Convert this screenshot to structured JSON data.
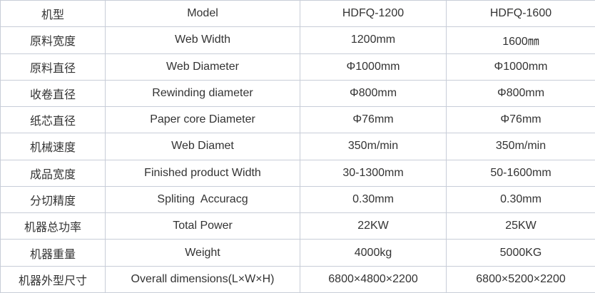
{
  "colors": {
    "border": "#c8cdd8",
    "text": "#333333",
    "background": "#ffffff"
  },
  "table": {
    "rows": [
      {
        "label_cn": "机型",
        "label_en": "Model",
        "hdfq_1200": "HDFQ-1200",
        "hdfq_1600": "HDFQ-1600"
      },
      {
        "label_cn": "原料宽度",
        "label_en": "Web Width",
        "hdfq_1200": "1200mm",
        "hdfq_1600": "1600㎜"
      },
      {
        "label_cn": "原料直径",
        "label_en": "Web Diameter",
        "hdfq_1200": "Φ1000mm",
        "hdfq_1600": "Φ1000mm"
      },
      {
        "label_cn": "收卷直径",
        "label_en": "Rewinding diameter",
        "hdfq_1200": "Φ800mm",
        "hdfq_1600": "Φ800mm"
      },
      {
        "label_cn": "纸芯直径",
        "label_en": "Paper core Diameter",
        "hdfq_1200": "Φ76mm",
        "hdfq_1600": "Φ76mm"
      },
      {
        "label_cn": "机械速度",
        "label_en": "Web Diamet",
        "hdfq_1200": "350m/min",
        "hdfq_1600": "350m/min"
      },
      {
        "label_cn": "成品宽度",
        "label_en": "Finished product Width",
        "hdfq_1200": "30-1300mm",
        "hdfq_1600": "50-1600mm"
      },
      {
        "label_cn": "分切精度",
        "label_en": "Spliting  Accuracg",
        "hdfq_1200": "0.30mm",
        "hdfq_1600": "0.30mm"
      },
      {
        "label_cn": "机器总功率",
        "label_en": "Total Power",
        "hdfq_1200": "22KW",
        "hdfq_1600": "25KW"
      },
      {
        "label_cn": "机器重量",
        "label_en": "Weight",
        "hdfq_1200": "4000kg",
        "hdfq_1600": "5000KG"
      },
      {
        "label_cn": "机器外型尺寸",
        "label_en": "Overall dimensions(L×W×H)",
        "hdfq_1200": "6800×4800×2200",
        "hdfq_1600": "6800×5200×2200"
      }
    ]
  }
}
